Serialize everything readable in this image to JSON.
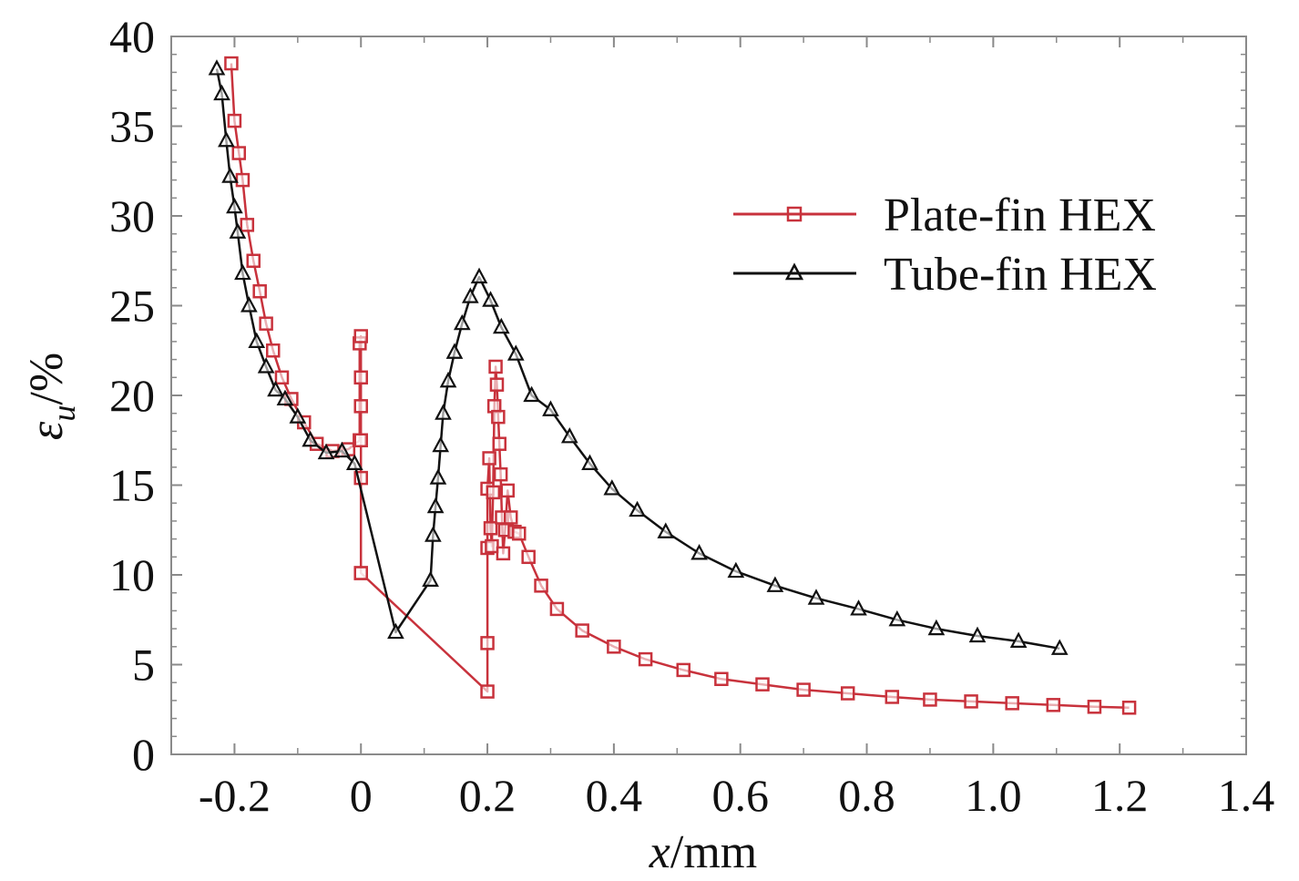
{
  "chart_data": {
    "type": "line",
    "title": "",
    "xlabel_var": "x",
    "xlabel_unit": "/mm",
    "ylabel_var": "ε",
    "ylabel_sub": "u",
    "ylabel_unit": "/%",
    "xlim": [
      -0.3,
      1.4
    ],
    "ylim": [
      0,
      40
    ],
    "xticks": [
      -0.2,
      0,
      0.2,
      0.4,
      0.6,
      0.8,
      1.0,
      1.2,
      1.4
    ],
    "xtick_labels": [
      "-0.2",
      "0",
      "0.2",
      "0.4",
      "0.6",
      "0.8",
      "1.0",
      "1.2",
      "1.4"
    ],
    "yticks": [
      0,
      5,
      10,
      15,
      20,
      25,
      30,
      35,
      40
    ],
    "ytick_labels": [
      "0",
      "5",
      "10",
      "15",
      "20",
      "25",
      "30",
      "35",
      "40"
    ],
    "grid": false,
    "legend_position": "top-right",
    "series": [
      {
        "name": "Plate-fin HEX",
        "color": "#c8323c",
        "marker": "square",
        "x": [
          -0.205,
          -0.2,
          -0.193,
          -0.187,
          -0.18,
          -0.17,
          -0.16,
          -0.15,
          -0.139,
          -0.125,
          -0.11,
          -0.09,
          -0.07,
          -0.045,
          -0.02,
          -0.002,
          -0.002,
          0.0,
          0.0,
          0.0,
          0.0,
          0.0,
          0.0,
          0.0,
          0.2,
          0.2,
          0.2,
          0.2,
          0.203,
          0.205,
          0.207,
          0.209,
          0.211,
          0.213,
          0.215,
          0.217,
          0.219,
          0.221,
          0.223,
          0.225,
          0.228,
          0.232,
          0.237,
          0.243,
          0.25,
          0.265,
          0.285,
          0.31,
          0.35,
          0.4,
          0.45,
          0.51,
          0.57,
          0.635,
          0.7,
          0.77,
          0.84,
          0.9,
          0.965,
          1.03,
          1.095,
          1.16,
          1.215
        ],
        "values": [
          38.5,
          35.3,
          33.5,
          32.0,
          29.5,
          27.5,
          25.8,
          24.0,
          22.5,
          21.0,
          19.8,
          18.5,
          17.3,
          16.9,
          17.0,
          17.5,
          22.9,
          23.3,
          21.0,
          19.4,
          17.5,
          15.4,
          10.1,
          10.1,
          3.5,
          6.2,
          11.5,
          14.8,
          16.5,
          12.6,
          11.6,
          14.6,
          19.4,
          21.6,
          20.6,
          18.8,
          17.3,
          15.6,
          13.2,
          11.2,
          12.5,
          14.7,
          13.2,
          12.4,
          12.3,
          11.0,
          9.4,
          8.1,
          6.9,
          6.0,
          5.3,
          4.7,
          4.2,
          3.9,
          3.6,
          3.4,
          3.2,
          3.05,
          2.95,
          2.85,
          2.75,
          2.65,
          2.6
        ]
      },
      {
        "name": "Tube-fin HEX",
        "color": "#111111",
        "marker": "triangle",
        "x": [
          -0.228,
          -0.22,
          -0.213,
          -0.207,
          -0.2,
          -0.195,
          -0.187,
          -0.177,
          -0.165,
          -0.15,
          -0.135,
          -0.12,
          -0.1,
          -0.08,
          -0.055,
          -0.03,
          -0.01,
          0.055,
          0.11,
          0.114,
          0.118,
          0.122,
          0.126,
          0.13,
          0.138,
          0.148,
          0.16,
          0.173,
          0.187,
          0.205,
          0.222,
          0.245,
          0.27,
          0.3,
          0.33,
          0.362,
          0.397,
          0.437,
          0.482,
          0.535,
          0.593,
          0.655,
          0.72,
          0.787,
          0.848,
          0.91,
          0.975,
          1.04,
          1.105
        ],
        "values": [
          38.2,
          36.8,
          34.2,
          32.2,
          30.5,
          29.1,
          26.8,
          25.0,
          23.0,
          21.6,
          20.3,
          19.8,
          18.8,
          17.5,
          16.8,
          16.9,
          16.2,
          6.8,
          9.7,
          12.2,
          13.8,
          15.4,
          17.2,
          19.0,
          20.8,
          22.4,
          24.0,
          25.5,
          26.6,
          25.3,
          23.8,
          22.3,
          20.0,
          19.2,
          17.7,
          16.2,
          14.8,
          13.6,
          12.4,
          11.2,
          10.2,
          9.4,
          8.7,
          8.1,
          7.5,
          7.0,
          6.6,
          6.3,
          5.9
        ]
      }
    ]
  }
}
